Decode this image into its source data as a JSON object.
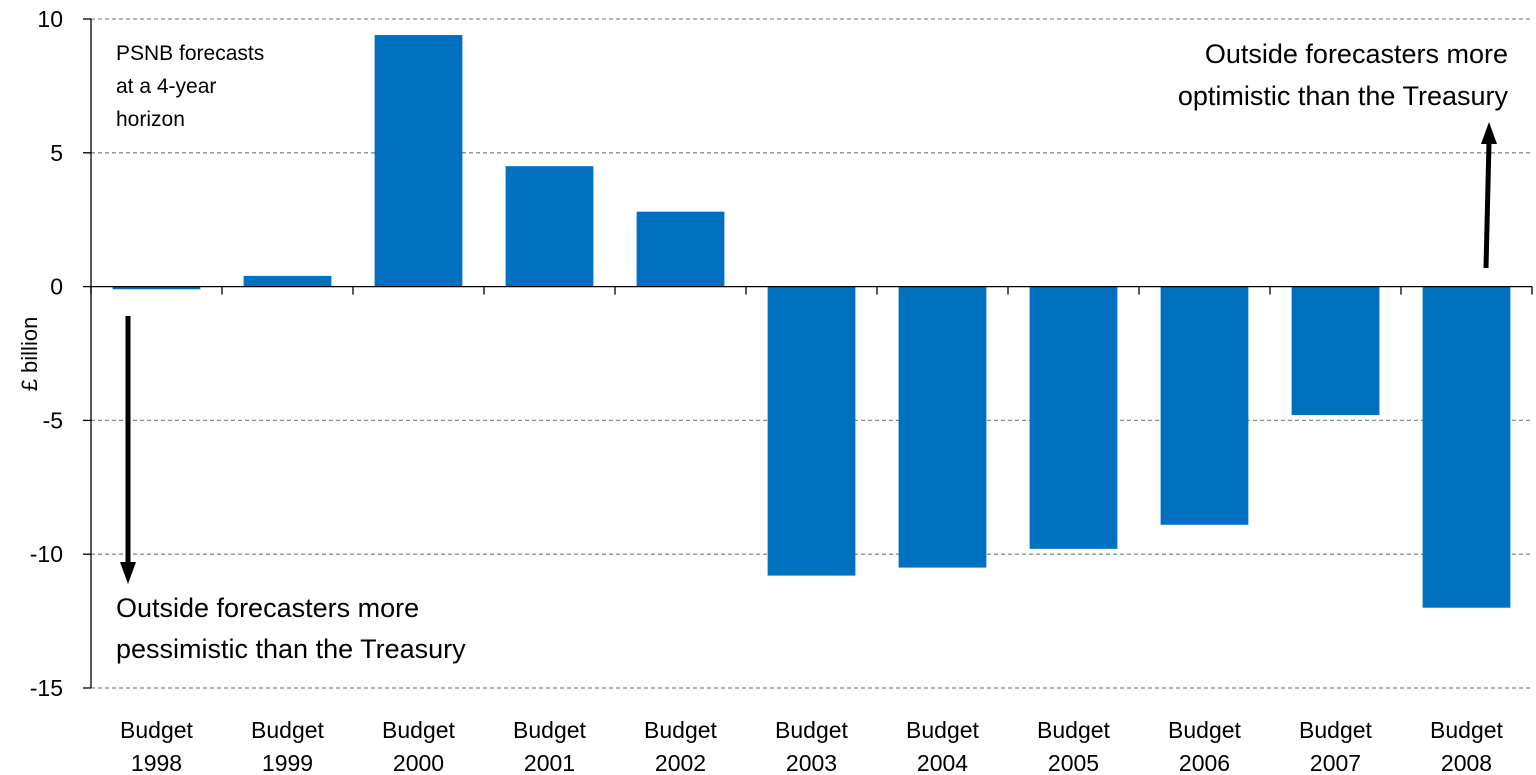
{
  "chart_data": {
    "type": "bar",
    "title": "",
    "xlabel": "",
    "ylabel": "£ billion",
    "ylim": [
      -15,
      10
    ],
    "yticks": [
      10,
      5,
      0,
      -5,
      -10,
      -15
    ],
    "grid": "horizontal dashed",
    "legend": "none",
    "bar_color": "#0070C0",
    "categories": [
      [
        "Budget",
        "1998"
      ],
      [
        "Budget",
        "1999"
      ],
      [
        "Budget",
        "2000"
      ],
      [
        "Budget",
        "2001"
      ],
      [
        "Budget",
        "2002"
      ],
      [
        "Budget",
        "2003"
      ],
      [
        "Budget",
        "2004"
      ],
      [
        "Budget",
        "2005"
      ],
      [
        "Budget",
        "2006"
      ],
      [
        "Budget",
        "2007"
      ],
      [
        "Budget",
        "2008"
      ]
    ],
    "values": [
      -0.1,
      0.4,
      9.4,
      4.5,
      2.8,
      -10.8,
      -10.5,
      -9.8,
      -8.9,
      -4.8,
      -12.0
    ],
    "annotations": {
      "corner_note": [
        "PSNB forecasts",
        "at a 4-year",
        "horizon"
      ],
      "optimistic_note": [
        "Outside forecasters more",
        "optimistic  than the Treasury"
      ],
      "pessimistic_note": [
        "Outside forecasters more",
        "pessimistic than the Treasury"
      ]
    }
  }
}
